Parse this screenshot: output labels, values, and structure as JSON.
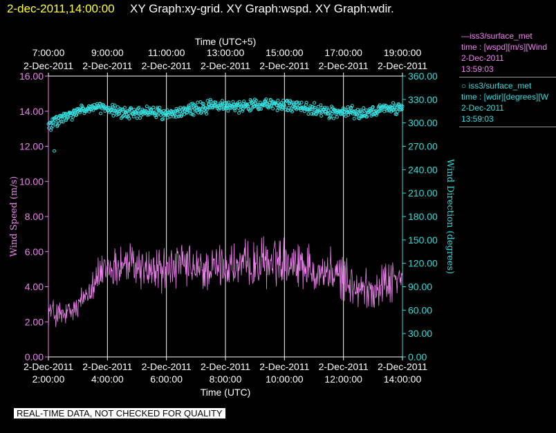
{
  "header": {
    "timestamp": "2-dec-2011,14:00:00",
    "titles": "XY Graph:xy-grid.  XY Graph:wspd.  XY Graph:wdir."
  },
  "legend": [
    {
      "line1": "—iss3/surface_met",
      "line2": "time : [wspd][m/s][Wind",
      "line3": "2-Dec-2011",
      "line4": "13:59:03"
    },
    {
      "line1": "○ iss3/surface_met",
      "line2": "time : [wdir][degrees][W",
      "line3": "2-Dec-2011",
      "line4": "13:59:03"
    }
  ],
  "footer": {
    "quality_note": "REAL-TIME DATA, NOT CHECKED FOR QUALITY"
  },
  "colors": {
    "wspd": "#ee82ee",
    "wdir": "#33dddd",
    "grid": "#ffffff",
    "axis": "#ffffff"
  },
  "chart_data": {
    "type": "line",
    "top_axis_label": "Time (UTC+5)",
    "bottom_axis_label": "Time (UTC)",
    "left_axis_label": "Wind Speed (m/s)",
    "right_axis_label": "Wind Direction (degrees)",
    "bottom_ticks": [
      {
        "date": "2-Dec-2011",
        "time": "2:00:00"
      },
      {
        "date": "2-Dec-2011",
        "time": "4:00:00"
      },
      {
        "date": "2-Dec-2011",
        "time": "6:00:00"
      },
      {
        "date": "2-Dec-2011",
        "time": "8:00:00"
      },
      {
        "date": "2-Dec-2011",
        "time": "10:00:00"
      },
      {
        "date": "2-Dec-2011",
        "time": "12:00:00"
      },
      {
        "date": "2-Dec-2011",
        "time": "14:00:00"
      }
    ],
    "top_ticks": [
      {
        "time": "7:00:00",
        "date": "2-Dec-2011"
      },
      {
        "time": "9:00:00",
        "date": "2-Dec-2011"
      },
      {
        "time": "11:00:00",
        "date": "2-Dec-2011"
      },
      {
        "time": "13:00:00",
        "date": "2-Dec-2011"
      },
      {
        "time": "15:00:00",
        "date": "2-Dec-2011"
      },
      {
        "time": "17:00:00",
        "date": "2-Dec-2011"
      },
      {
        "time": "19:00:00",
        "date": "2-Dec-2011"
      }
    ],
    "x_range_utc_hours": [
      2,
      14
    ],
    "left_ylim": [
      0,
      16
    ],
    "left_ticks": [
      "0.00",
      "2.00",
      "4.00",
      "6.00",
      "8.00",
      "10.00",
      "12.00",
      "14.00",
      "16.00"
    ],
    "right_ylim": [
      0,
      360
    ],
    "right_ticks": [
      "0.00",
      "30.00",
      "60.00",
      "90.00",
      "120.00",
      "150.00",
      "180.00",
      "210.00",
      "240.00",
      "270.00",
      "300.00",
      "330.00",
      "360.00"
    ],
    "grid": true,
    "series": [
      {
        "name": "iss3/surface_met",
        "axis": "left",
        "style": "line",
        "x_hours": [
          2.0,
          2.5,
          3.0,
          3.5,
          4.0,
          4.5,
          5.0,
          5.5,
          6.0,
          6.5,
          7.0,
          7.5,
          8.0,
          8.5,
          9.0,
          9.5,
          10.0,
          10.5,
          11.0,
          11.5,
          12.0,
          12.5,
          13.0,
          13.5,
          14.0
        ],
        "y": [
          2.6,
          2.3,
          2.8,
          4.3,
          5.0,
          5.3,
          5.2,
          4.9,
          5.0,
          5.2,
          4.9,
          5.0,
          5.2,
          5.1,
          5.3,
          5.4,
          5.6,
          5.4,
          5.0,
          4.8,
          4.5,
          3.8,
          3.9,
          4.3,
          4.5
        ],
        "spread": [
          1.2,
          1.0,
          1.0,
          1.3,
          1.5,
          1.6,
          1.6,
          1.6,
          1.5,
          1.6,
          1.6,
          1.5,
          1.6,
          1.6,
          1.6,
          1.7,
          1.6,
          1.6,
          1.6,
          1.6,
          1.5,
          1.5,
          1.5,
          1.5,
          1.3
        ],
        "samples": 720
      },
      {
        "name": "iss3/surface_met",
        "axis": "right",
        "style": "scatter",
        "x_hours": [
          2.0,
          2.5,
          3.0,
          3.5,
          4.0,
          4.5,
          5.0,
          5.5,
          6.0,
          6.5,
          7.0,
          7.5,
          8.0,
          8.5,
          9.0,
          9.5,
          10.0,
          10.5,
          11.0,
          11.5,
          12.0,
          12.5,
          13.0,
          13.5,
          14.0
        ],
        "y": [
          297,
          306,
          314,
          320,
          318,
          312,
          313,
          315,
          311,
          314,
          318,
          321,
          322,
          321,
          323,
          325,
          322,
          320,
          318,
          313,
          315,
          313,
          314,
          318,
          321
        ],
        "spread": [
          10,
          9,
          8,
          8,
          8,
          9,
          9,
          8,
          8,
          9,
          9,
          9,
          9,
          9,
          9,
          9,
          9,
          9,
          9,
          9,
          9,
          9,
          9,
          9,
          9
        ],
        "samples": 720,
        "outliers": [
          {
            "x_hours": 2.2,
            "y": 264
          }
        ]
      }
    ]
  }
}
